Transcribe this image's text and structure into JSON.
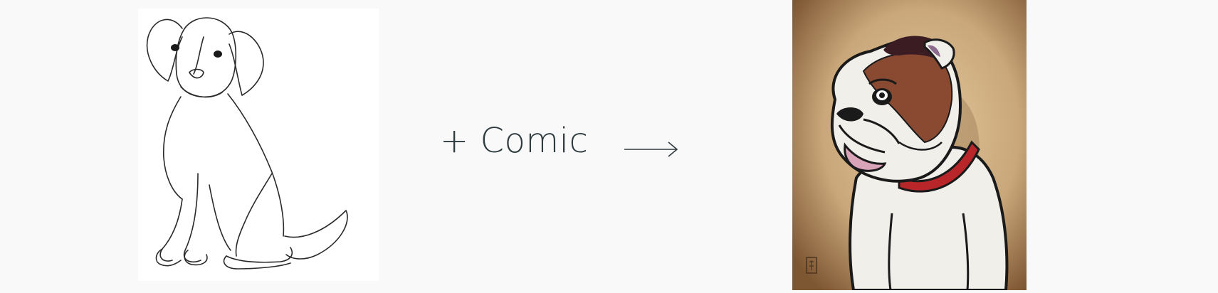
{
  "prompt": {
    "style_text": "+ Comic"
  },
  "images": {
    "input": {
      "icon": "dog-line-sketch"
    },
    "output": {
      "icon": "bulldog-comic-illustration"
    }
  },
  "arrow": {
    "icon": "right-arrow"
  },
  "colors": {
    "background": "#f9f9f9",
    "text": "#2e3b3f",
    "comic_brown": "#8a4a32",
    "comic_collar": "#b8262a",
    "comic_bg": "#c9a77a"
  }
}
